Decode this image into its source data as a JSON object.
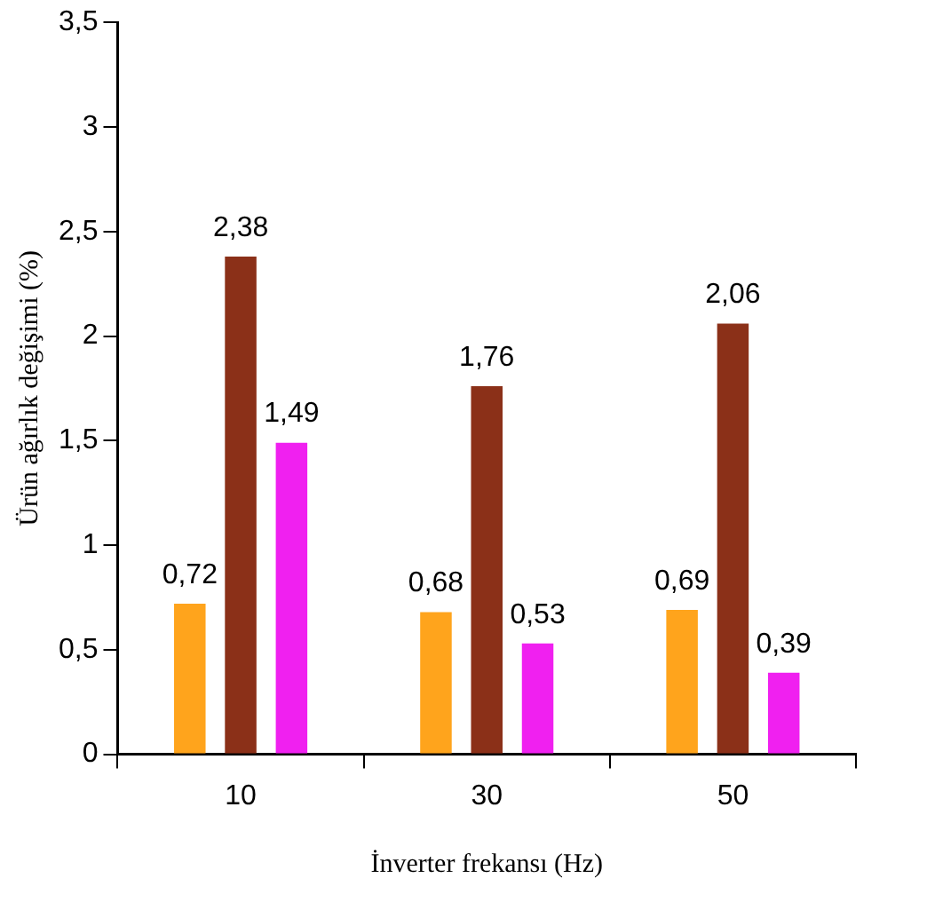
{
  "chart_data": {
    "type": "bar",
    "ylabel": "Ürün ağırlık değişimi (%)",
    "xlabel": "İnverter frekansı (Hz)",
    "categories": [
      "10",
      "30",
      "50"
    ],
    "series": [
      {
        "color": "#ffa41c",
        "values": [
          0.72,
          0.68,
          0.69
        ],
        "value_labels": [
          "0,72",
          "0,68",
          "0,69"
        ]
      },
      {
        "color": "#8b3018",
        "values": [
          2.38,
          1.76,
          2.06
        ],
        "value_labels": [
          "2,38",
          "1,76",
          "2,06"
        ]
      },
      {
        "color": "#f020f0",
        "values": [
          1.49,
          0.53,
          0.39
        ],
        "value_labels": [
          "1,49",
          "0,53",
          "0,39"
        ]
      }
    ],
    "ylim": [
      0,
      3.5
    ],
    "yticks": [
      0,
      {
        "value": 0.5,
        "label": "0,5"
      },
      1,
      {
        "value": 1.5,
        "label": "1,5"
      },
      2,
      {
        "value": 2.5,
        "label": "2,5"
      },
      3,
      {
        "value": 3.5,
        "label": "3,5"
      }
    ],
    "grid": false,
    "legend": false
  }
}
